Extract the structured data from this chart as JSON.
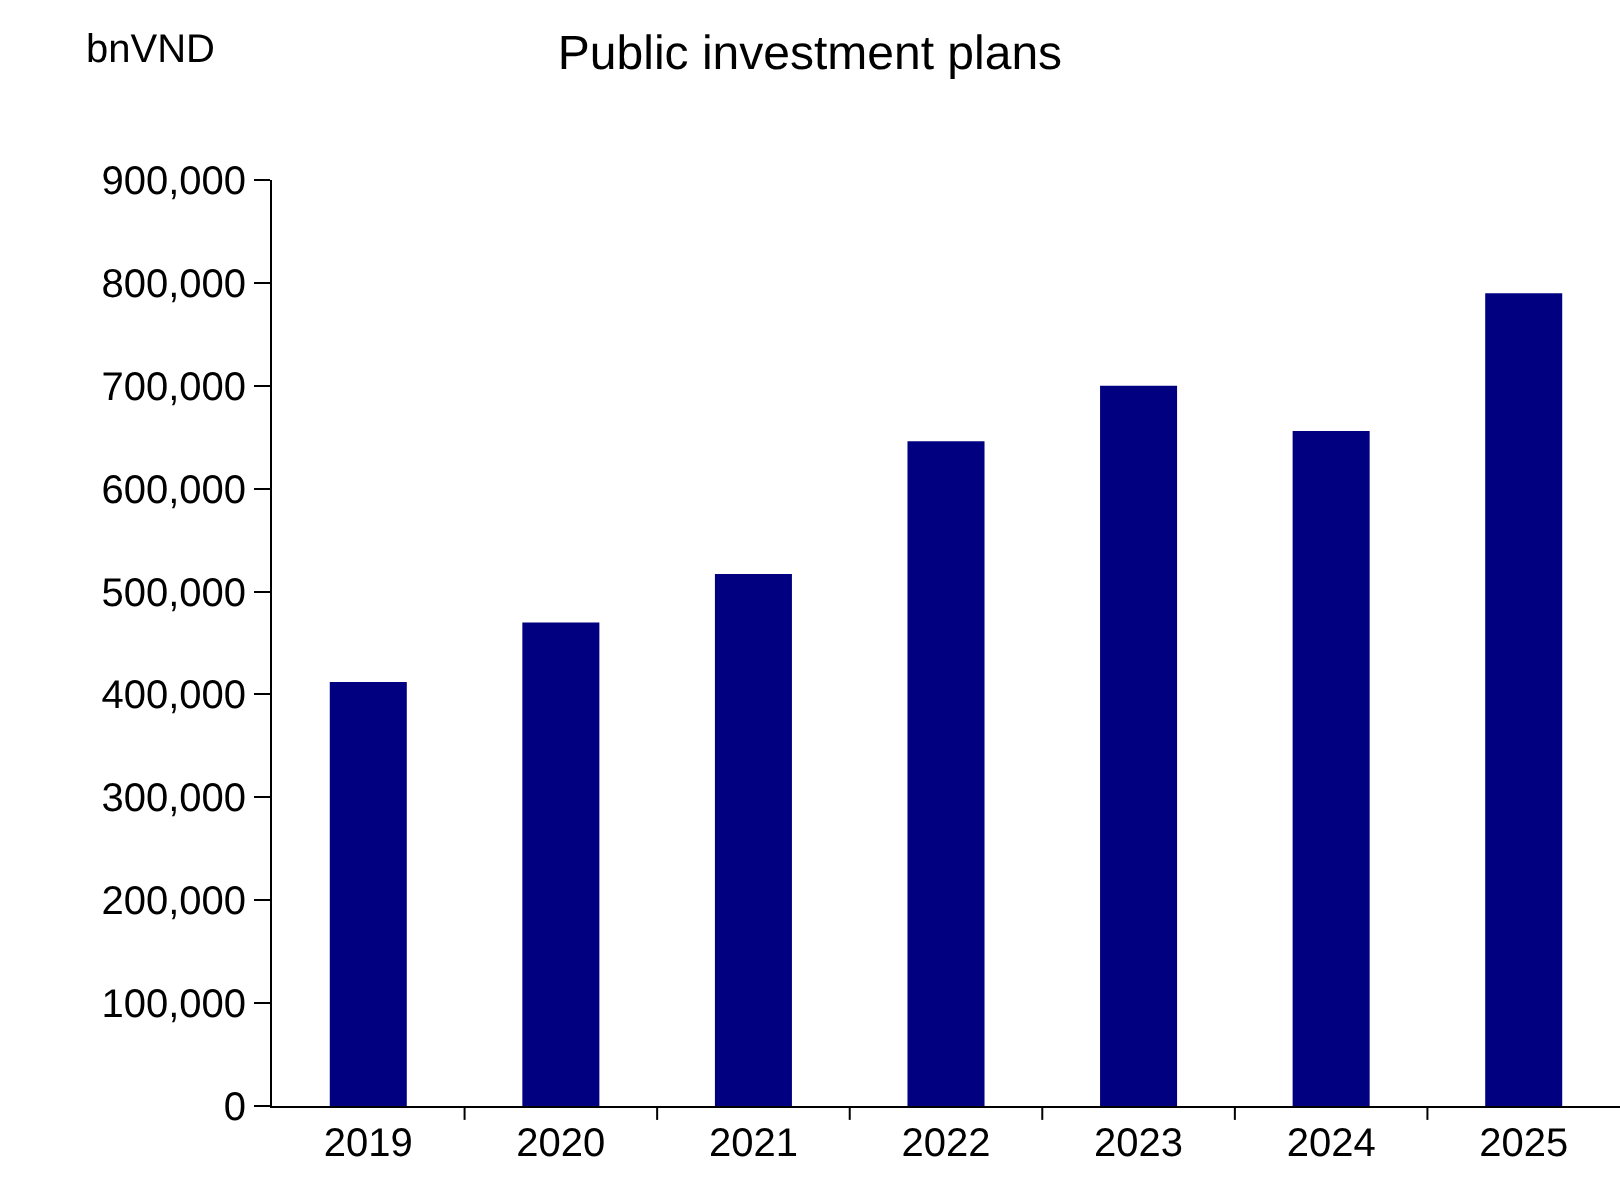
{
  "chart_data": {
    "type": "bar",
    "title": "Public investment plans",
    "ylabel": "bnVND",
    "categories": [
      "2019",
      "2020",
      "2021",
      "2022",
      "2023",
      "2024",
      "2025"
    ],
    "values": [
      412000,
      470000,
      517000,
      646000,
      700000,
      656000,
      790000
    ],
    "color": "#000080",
    "ylim": [
      0,
      900000
    ],
    "yticks": [
      {
        "value": 0,
        "label": "0"
      },
      {
        "value": 100000,
        "label": "100,000"
      },
      {
        "value": 200000,
        "label": "200,000"
      },
      {
        "value": 300000,
        "label": "300,000"
      },
      {
        "value": 400000,
        "label": "400,000"
      },
      {
        "value": 500000,
        "label": "500,000"
      },
      {
        "value": 600000,
        "label": "600,000"
      },
      {
        "value": 700000,
        "label": "700,000"
      },
      {
        "value": 800000,
        "label": "800,000"
      },
      {
        "value": 900000,
        "label": "900,000"
      }
    ],
    "grid": false,
    "legend": false
  }
}
